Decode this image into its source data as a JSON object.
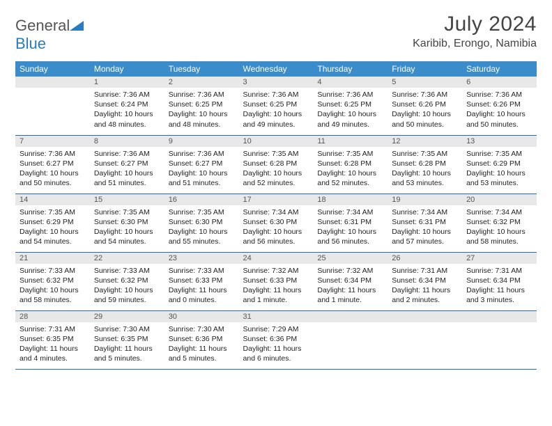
{
  "logo": {
    "text1": "General",
    "text2": "Blue"
  },
  "title": "July 2024",
  "location": "Karibib, Erongo, Namibia",
  "colors": {
    "header_bg": "#3b8ccb",
    "header_text": "#ffffff",
    "daynum_bg": "#e8e8e8",
    "border": "#2a6aa0",
    "logo_gray": "#555555",
    "logo_blue": "#2a7bbf"
  },
  "weekdays": [
    "Sunday",
    "Monday",
    "Tuesday",
    "Wednesday",
    "Thursday",
    "Friday",
    "Saturday"
  ],
  "weeks": [
    [
      {
        "n": "",
        "sr": "",
        "ss": "",
        "dl": ""
      },
      {
        "n": "1",
        "sr": "Sunrise: 7:36 AM",
        "ss": "Sunset: 6:24 PM",
        "dl": "Daylight: 10 hours and 48 minutes."
      },
      {
        "n": "2",
        "sr": "Sunrise: 7:36 AM",
        "ss": "Sunset: 6:25 PM",
        "dl": "Daylight: 10 hours and 48 minutes."
      },
      {
        "n": "3",
        "sr": "Sunrise: 7:36 AM",
        "ss": "Sunset: 6:25 PM",
        "dl": "Daylight: 10 hours and 49 minutes."
      },
      {
        "n": "4",
        "sr": "Sunrise: 7:36 AM",
        "ss": "Sunset: 6:25 PM",
        "dl": "Daylight: 10 hours and 49 minutes."
      },
      {
        "n": "5",
        "sr": "Sunrise: 7:36 AM",
        "ss": "Sunset: 6:26 PM",
        "dl": "Daylight: 10 hours and 50 minutes."
      },
      {
        "n": "6",
        "sr": "Sunrise: 7:36 AM",
        "ss": "Sunset: 6:26 PM",
        "dl": "Daylight: 10 hours and 50 minutes."
      }
    ],
    [
      {
        "n": "7",
        "sr": "Sunrise: 7:36 AM",
        "ss": "Sunset: 6:27 PM",
        "dl": "Daylight: 10 hours and 50 minutes."
      },
      {
        "n": "8",
        "sr": "Sunrise: 7:36 AM",
        "ss": "Sunset: 6:27 PM",
        "dl": "Daylight: 10 hours and 51 minutes."
      },
      {
        "n": "9",
        "sr": "Sunrise: 7:36 AM",
        "ss": "Sunset: 6:27 PM",
        "dl": "Daylight: 10 hours and 51 minutes."
      },
      {
        "n": "10",
        "sr": "Sunrise: 7:35 AM",
        "ss": "Sunset: 6:28 PM",
        "dl": "Daylight: 10 hours and 52 minutes."
      },
      {
        "n": "11",
        "sr": "Sunrise: 7:35 AM",
        "ss": "Sunset: 6:28 PM",
        "dl": "Daylight: 10 hours and 52 minutes."
      },
      {
        "n": "12",
        "sr": "Sunrise: 7:35 AM",
        "ss": "Sunset: 6:28 PM",
        "dl": "Daylight: 10 hours and 53 minutes."
      },
      {
        "n": "13",
        "sr": "Sunrise: 7:35 AM",
        "ss": "Sunset: 6:29 PM",
        "dl": "Daylight: 10 hours and 53 minutes."
      }
    ],
    [
      {
        "n": "14",
        "sr": "Sunrise: 7:35 AM",
        "ss": "Sunset: 6:29 PM",
        "dl": "Daylight: 10 hours and 54 minutes."
      },
      {
        "n": "15",
        "sr": "Sunrise: 7:35 AM",
        "ss": "Sunset: 6:30 PM",
        "dl": "Daylight: 10 hours and 54 minutes."
      },
      {
        "n": "16",
        "sr": "Sunrise: 7:35 AM",
        "ss": "Sunset: 6:30 PM",
        "dl": "Daylight: 10 hours and 55 minutes."
      },
      {
        "n": "17",
        "sr": "Sunrise: 7:34 AM",
        "ss": "Sunset: 6:30 PM",
        "dl": "Daylight: 10 hours and 56 minutes."
      },
      {
        "n": "18",
        "sr": "Sunrise: 7:34 AM",
        "ss": "Sunset: 6:31 PM",
        "dl": "Daylight: 10 hours and 56 minutes."
      },
      {
        "n": "19",
        "sr": "Sunrise: 7:34 AM",
        "ss": "Sunset: 6:31 PM",
        "dl": "Daylight: 10 hours and 57 minutes."
      },
      {
        "n": "20",
        "sr": "Sunrise: 7:34 AM",
        "ss": "Sunset: 6:32 PM",
        "dl": "Daylight: 10 hours and 58 minutes."
      }
    ],
    [
      {
        "n": "21",
        "sr": "Sunrise: 7:33 AM",
        "ss": "Sunset: 6:32 PM",
        "dl": "Daylight: 10 hours and 58 minutes."
      },
      {
        "n": "22",
        "sr": "Sunrise: 7:33 AM",
        "ss": "Sunset: 6:32 PM",
        "dl": "Daylight: 10 hours and 59 minutes."
      },
      {
        "n": "23",
        "sr": "Sunrise: 7:33 AM",
        "ss": "Sunset: 6:33 PM",
        "dl": "Daylight: 11 hours and 0 minutes."
      },
      {
        "n": "24",
        "sr": "Sunrise: 7:32 AM",
        "ss": "Sunset: 6:33 PM",
        "dl": "Daylight: 11 hours and 1 minute."
      },
      {
        "n": "25",
        "sr": "Sunrise: 7:32 AM",
        "ss": "Sunset: 6:34 PM",
        "dl": "Daylight: 11 hours and 1 minute."
      },
      {
        "n": "26",
        "sr": "Sunrise: 7:31 AM",
        "ss": "Sunset: 6:34 PM",
        "dl": "Daylight: 11 hours and 2 minutes."
      },
      {
        "n": "27",
        "sr": "Sunrise: 7:31 AM",
        "ss": "Sunset: 6:34 PM",
        "dl": "Daylight: 11 hours and 3 minutes."
      }
    ],
    [
      {
        "n": "28",
        "sr": "Sunrise: 7:31 AM",
        "ss": "Sunset: 6:35 PM",
        "dl": "Daylight: 11 hours and 4 minutes."
      },
      {
        "n": "29",
        "sr": "Sunrise: 7:30 AM",
        "ss": "Sunset: 6:35 PM",
        "dl": "Daylight: 11 hours and 5 minutes."
      },
      {
        "n": "30",
        "sr": "Sunrise: 7:30 AM",
        "ss": "Sunset: 6:36 PM",
        "dl": "Daylight: 11 hours and 5 minutes."
      },
      {
        "n": "31",
        "sr": "Sunrise: 7:29 AM",
        "ss": "Sunset: 6:36 PM",
        "dl": "Daylight: 11 hours and 6 minutes."
      },
      {
        "n": "",
        "sr": "",
        "ss": "",
        "dl": ""
      },
      {
        "n": "",
        "sr": "",
        "ss": "",
        "dl": ""
      },
      {
        "n": "",
        "sr": "",
        "ss": "",
        "dl": ""
      }
    ]
  ]
}
